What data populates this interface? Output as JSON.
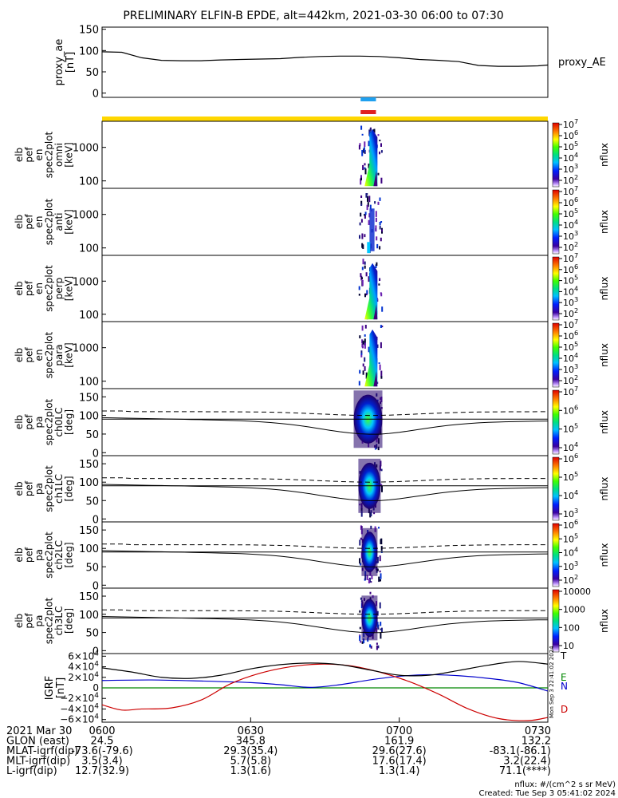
{
  "title": "PRELIMINARY ELFIN-B EPDE, alt=442km, 2021-03-30 06:00 to 07:30",
  "chart_data": [
    {
      "type": "line",
      "ylabel": [
        "proxy_ae",
        "[nT]"
      ],
      "yticks": [
        "150",
        "100",
        "50",
        "0"
      ],
      "ylim": [
        -10,
        155
      ],
      "series_label": "proxy_AE",
      "x_min": [
        0,
        4,
        8,
        12,
        16,
        20,
        24,
        28,
        32,
        36,
        40,
        44,
        48,
        52,
        56,
        60,
        64,
        68,
        72,
        76,
        80,
        84,
        88,
        90
      ],
      "values": [
        97,
        96,
        83,
        77,
        76,
        76,
        78,
        79,
        80,
        81,
        84,
        86,
        87,
        87,
        86,
        83,
        79,
        77,
        74,
        65,
        63,
        63,
        64,
        66
      ]
    },
    {
      "type": "heatmap",
      "name": "omni",
      "ylabel": [
        "elb",
        "pef",
        "en",
        "spec2plot",
        "omni",
        "[keV]"
      ],
      "yticks": [
        "1000",
        "100"
      ],
      "cbar_label": "nflux",
      "cbar_ticks": [
        "10^7",
        "10^6",
        "10^5",
        "10^4",
        "10^3",
        "10^2"
      ]
    },
    {
      "type": "heatmap",
      "name": "anti",
      "ylabel": [
        "elb",
        "pef",
        "en",
        "spec2plot",
        "anti",
        "[keV]"
      ],
      "yticks": [
        "1000",
        "100"
      ],
      "cbar_label": "nflux",
      "cbar_ticks": [
        "10^7",
        "10^6",
        "10^5",
        "10^4",
        "10^3",
        "10^2"
      ]
    },
    {
      "type": "heatmap",
      "name": "perp",
      "ylabel": [
        "elb",
        "pef",
        "en",
        "spec2plot",
        "perp",
        "[keV]"
      ],
      "yticks": [
        "1000",
        "100"
      ],
      "cbar_label": "nflux",
      "cbar_ticks": [
        "10^7",
        "10^6",
        "10^5",
        "10^4",
        "10^3",
        "10^2"
      ]
    },
    {
      "type": "heatmap",
      "name": "para",
      "ylabel": [
        "elb",
        "pef",
        "en",
        "spec2plot",
        "para",
        "[keV]"
      ],
      "yticks": [
        "1000",
        "100"
      ],
      "cbar_label": "nflux",
      "cbar_ticks": [
        "10^7",
        "10^6",
        "10^5",
        "10^4",
        "10^3",
        "10^2"
      ]
    },
    {
      "type": "heatmap",
      "name": "ch0LC",
      "ylabel": [
        "elb",
        "pef",
        "pa",
        "spec2plot",
        "ch0LC",
        "[deg]"
      ],
      "yticks": [
        "150",
        "100",
        "50",
        "0"
      ],
      "cbar_label": "nflux",
      "cbar_ticks": [
        "10^7",
        "10^6",
        "10^5",
        "10^4"
      ]
    },
    {
      "type": "heatmap",
      "name": "ch1LC",
      "ylabel": [
        "elb",
        "pef",
        "pa",
        "spec2plot",
        "ch1LC",
        "[deg]"
      ],
      "yticks": [
        "150",
        "100",
        "50",
        "0"
      ],
      "cbar_label": "nflux",
      "cbar_ticks": [
        "10^6",
        "10^5",
        "10^4",
        "10^3"
      ]
    },
    {
      "type": "heatmap",
      "name": "ch2LC",
      "ylabel": [
        "elb",
        "pef",
        "pa",
        "spec2plot",
        "ch2LC",
        "[deg]"
      ],
      "yticks": [
        "150",
        "100",
        "50",
        "0"
      ],
      "cbar_label": "nflux",
      "cbar_ticks": [
        "10^6",
        "10^5",
        "10^4",
        "10^3",
        "10^2"
      ]
    },
    {
      "type": "heatmap",
      "name": "ch3LC",
      "ylabel": [
        "elb",
        "pef",
        "pa",
        "spec2plot",
        "ch3LC",
        "[deg]"
      ],
      "yticks": [
        "150",
        "100",
        "50",
        "0"
      ],
      "cbar_label": "nflux",
      "cbar_ticks": [
        "10000",
        "1000",
        "100",
        "10"
      ]
    },
    {
      "type": "line",
      "name": "IGRF",
      "ylabel": [
        "IGRF",
        "[nT]"
      ],
      "yticks": [
        "6×10^4",
        "4×10^4",
        "2×10^4",
        "0",
        "−2×10^4",
        "−4×10^4",
        "−6×10^4"
      ],
      "ylim": [
        -65000,
        65000
      ],
      "series": [
        {
          "name": "E",
          "color": "#008800",
          "x_min": [
            0,
            90
          ],
          "values": [
            0,
            0
          ]
        },
        {
          "name": "N",
          "color": "#0000cc",
          "x_min": [
            0,
            10,
            20,
            30,
            36,
            42,
            48,
            54,
            60,
            66,
            72,
            78,
            84,
            90
          ],
          "values": [
            14000,
            15000,
            13000,
            10000,
            6000,
            1000,
            6000,
            15000,
            22000,
            25000,
            23000,
            18000,
            10000,
            -6000
          ]
        },
        {
          "name": "D",
          "color": "#cc0000",
          "x_min": [
            0,
            4,
            8,
            14,
            20,
            26,
            32,
            38,
            44,
            50,
            56,
            62,
            68,
            74,
            80,
            86,
            90
          ],
          "values": [
            -32000,
            -42000,
            -40000,
            -38000,
            -23000,
            8000,
            28000,
            40000,
            45000,
            42000,
            30000,
            12000,
            -12000,
            -40000,
            -58000,
            -62000,
            -56000
          ]
        },
        {
          "name": "",
          "color": "#000000",
          "x_min": [
            0,
            6,
            12,
            18,
            24,
            30,
            36,
            42,
            48,
            54,
            60,
            66,
            72,
            78,
            84,
            90
          ],
          "values": [
            38000,
            30000,
            20000,
            18000,
            24000,
            36000,
            44000,
            47000,
            44000,
            34000,
            24000,
            24000,
            33000,
            43000,
            50000,
            45000
          ]
        }
      ],
      "side_stamp": "Mon Sep  3 22:41:02 2024",
      "legend": [
        "T",
        "E",
        "N",
        "D"
      ]
    }
  ],
  "tracks": {
    "blue_bar": "#1fa0ef",
    "red_bar": "#e02020",
    "yellow_bar": "#ffd700"
  },
  "footer": {
    "rows": [
      [
        "2021 Mar 30",
        "0600",
        "0630",
        "0700",
        "0730"
      ],
      [
        "GLON (east)",
        "24.5",
        "345.8",
        "161.9",
        "132.2"
      ],
      [
        "MLAT-igrf(dip)",
        "-73.6(-79.6)",
        "29.3(35.4)",
        "29.6(27.6)",
        "-83.1(-86.1)"
      ],
      [
        "MLT-igrf(dip)",
        "3.5(3.4)",
        "5.7(5.8)",
        "17.6(17.4)",
        "3.2(22.4)"
      ],
      [
        "L-igrf(dip)",
        "12.7(32.9)",
        "1.3(1.6)",
        "1.3(1.4)",
        "71.1(****)"
      ]
    ],
    "units": "nflux: #/(cm^2 s sr MeV)",
    "created": "Created: Tue Sep  3 05:41:02 2024"
  }
}
